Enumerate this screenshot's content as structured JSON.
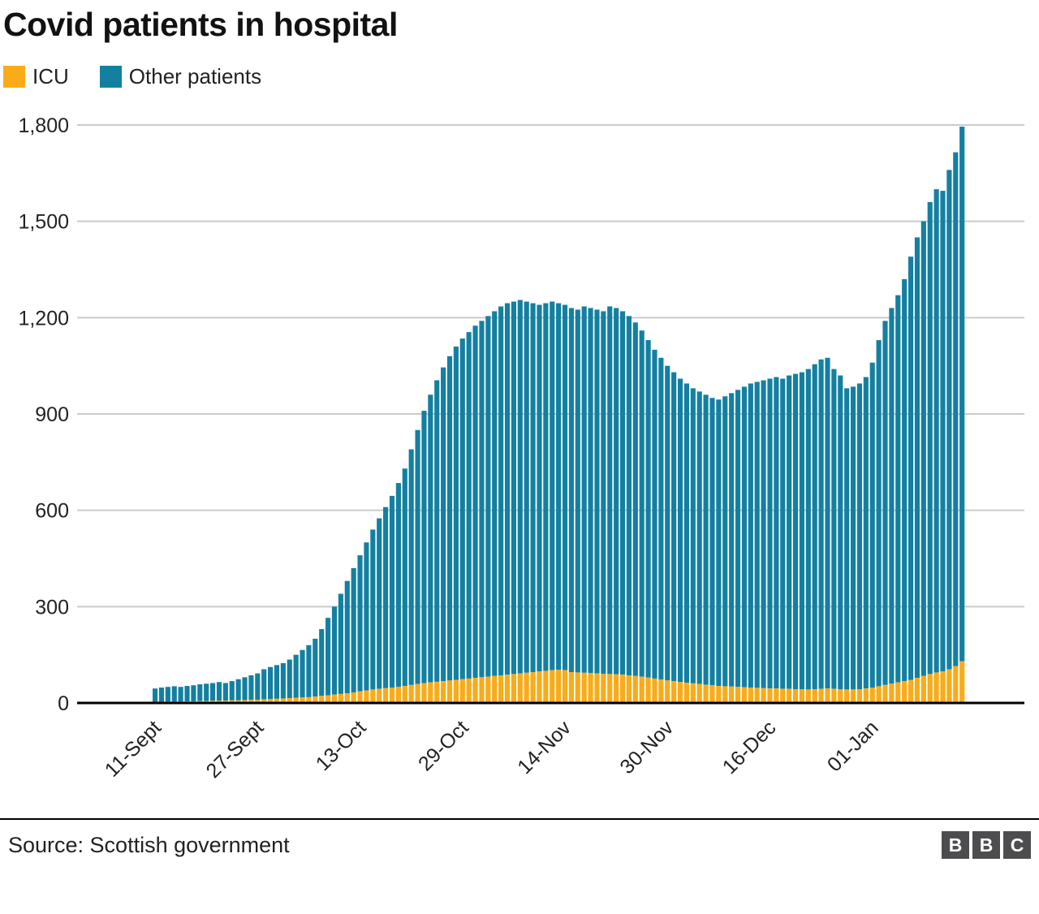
{
  "header": {
    "title": "Covid patients in hospital"
  },
  "legend": [
    {
      "label": "ICU",
      "color": "#FAAB18"
    },
    {
      "label": "Other patients",
      "color": "#1380A1"
    }
  ],
  "footer": {
    "source": "Source: Scottish government",
    "logo_letters": [
      "B",
      "B",
      "C"
    ]
  },
  "chart_data": {
    "type": "bar",
    "stacked": true,
    "title": "Covid patients in hospital",
    "xlabel": "",
    "ylabel": "",
    "ylim": [
      0,
      1800
    ],
    "yticks": [
      0,
      300,
      600,
      900,
      1200,
      1500,
      1800
    ],
    "ytick_labels": [
      "0",
      "300",
      "600",
      "900",
      "1,200",
      "1,500",
      "1,800"
    ],
    "grid": "horizontal",
    "gridline_color": "#CBCBCB",
    "axis_line_color": "#000000",
    "legend_position": "top-left",
    "x_unit": "day",
    "x_tick_indices": [
      1,
      17,
      33,
      49,
      65,
      81,
      97,
      113
    ],
    "x_tick_labels": [
      "11-Sept",
      "27-Sept",
      "13-Oct",
      "29-Oct",
      "14-Nov",
      "30-Nov",
      "16-Dec",
      "01-Jan"
    ],
    "series": [
      {
        "name": "ICU",
        "color": "#FAAB18",
        "values": [
          3,
          3,
          4,
          4,
          4,
          5,
          5,
          6,
          6,
          7,
          7,
          7,
          8,
          8,
          9,
          10,
          10,
          11,
          12,
          13,
          14,
          15,
          16,
          17,
          18,
          20,
          22,
          24,
          26,
          28,
          30,
          33,
          36,
          39,
          42,
          44,
          46,
          48,
          50,
          53,
          56,
          59,
          62,
          64,
          66,
          68,
          70,
          72,
          74,
          76,
          78,
          80,
          82,
          84,
          86,
          88,
          90,
          92,
          94,
          96,
          98,
          100,
          102,
          103,
          102,
          96,
          95,
          94,
          93,
          92,
          91,
          90,
          89,
          88,
          86,
          84,
          82,
          79,
          76,
          73,
          70,
          68,
          65,
          63,
          61,
          59,
          57,
          55,
          53,
          52,
          51,
          50,
          49,
          48,
          47,
          46,
          45,
          45,
          44,
          44,
          43,
          43,
          42,
          43,
          44,
          45,
          44,
          43,
          42,
          42,
          43,
          45,
          48,
          52,
          56,
          60,
          64,
          68,
          72,
          78,
          84,
          90,
          95,
          98,
          105,
          115,
          130
        ]
      },
      {
        "name": "Other patients",
        "color": "#1380A1",
        "values": [
          42,
          45,
          46,
          48,
          46,
          48,
          50,
          52,
          54,
          55,
          58,
          55,
          60,
          66,
          71,
          76,
          82,
          94,
          100,
          105,
          110,
          120,
          134,
          148,
          162,
          180,
          208,
          241,
          274,
          312,
          350,
          387,
          424,
          461,
          498,
          531,
          564,
          597,
          635,
          677,
          734,
          791,
          848,
          896,
          939,
          977,
          1010,
          1038,
          1061,
          1079,
          1097,
          1110,
          1123,
          1136,
          1149,
          1157,
          1160,
          1163,
          1156,
          1149,
          1142,
          1145,
          1148,
          1142,
          1138,
          1134,
          1130,
          1141,
          1137,
          1133,
          1129,
          1145,
          1141,
          1132,
          1119,
          1101,
          1078,
          1051,
          1024,
          1002,
          980,
          962,
          945,
          932,
          919,
          911,
          903,
          895,
          892,
          903,
          914,
          925,
          936,
          947,
          953,
          959,
          965,
          970,
          966,
          976,
          982,
          987,
          998,
          1012,
          1026,
          1030,
          996,
          977,
          938,
          943,
          952,
          970,
          1012,
          1078,
          1134,
          1170,
          1206,
          1252,
          1318,
          1372,
          1416,
          1470,
          1505,
          1497,
          1555,
          1600,
          1665
        ]
      }
    ]
  }
}
